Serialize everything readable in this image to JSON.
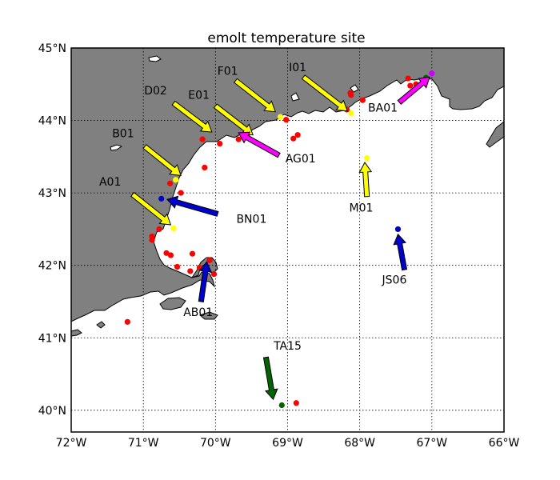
{
  "title": "emolt temperature site",
  "x_ticks": [
    {
      "lon": -72,
      "label": "72°W"
    },
    {
      "lon": -71,
      "label": "71°W"
    },
    {
      "lon": -70,
      "label": "70°W"
    },
    {
      "lon": -69,
      "label": "69°W"
    },
    {
      "lon": -68,
      "label": "68°W"
    },
    {
      "lon": -67,
      "label": "67°W"
    },
    {
      "lon": -66,
      "label": "66°W"
    }
  ],
  "y_ticks": [
    {
      "lat": 45,
      "label": "45°N"
    },
    {
      "lat": 44,
      "label": "44°N"
    },
    {
      "lat": 43,
      "label": "43°N"
    },
    {
      "lat": 42,
      "label": "42°N"
    },
    {
      "lat": 41,
      "label": "41°N"
    },
    {
      "lat": 40,
      "label": "40°N"
    }
  ],
  "map_extent": {
    "lon": [
      -72,
      -66
    ],
    "lat": [
      39.7,
      45
    ]
  },
  "colors": {
    "land": "#808080",
    "water": "#ffffff",
    "yellow": "#ffff00",
    "magenta": "#ff00ff",
    "blue": "#0000cc",
    "green": "#006400",
    "red": "#ff0000",
    "violet": "#cc00ff"
  },
  "sites": [
    {
      "name": "A01",
      "color": "yellow",
      "label": [
        -71.46,
        43.1
      ],
      "tail": [
        -71.15,
        42.98
      ],
      "head": [
        -70.62,
        42.56
      ]
    },
    {
      "name": "B01",
      "color": "yellow",
      "label": [
        -71.28,
        43.77
      ],
      "tail": [
        -70.98,
        43.64
      ],
      "head": [
        -70.48,
        43.24
      ]
    },
    {
      "name": "D02",
      "color": "yellow",
      "label": [
        -70.83,
        44.36
      ],
      "tail": [
        -70.58,
        44.24
      ],
      "head": [
        -70.05,
        43.84
      ]
    },
    {
      "name": "E01",
      "color": "yellow",
      "label": [
        -70.23,
        44.3
      ],
      "tail": [
        -70.0,
        44.2
      ],
      "head": [
        -69.48,
        43.8
      ]
    },
    {
      "name": "F01",
      "color": "yellow",
      "label": [
        -69.83,
        44.63
      ],
      "tail": [
        -69.72,
        44.55
      ],
      "head": [
        -69.17,
        44.12
      ]
    },
    {
      "name": "I01",
      "color": "yellow",
      "label": [
        -68.86,
        44.68
      ],
      "tail": [
        -68.78,
        44.6
      ],
      "head": [
        -68.17,
        44.13
      ]
    },
    {
      "name": "AG01",
      "color": "magenta",
      "label": [
        -68.82,
        43.42
      ],
      "tail": [
        -69.12,
        43.52
      ],
      "head": [
        -69.68,
        43.83
      ]
    },
    {
      "name": "BA01",
      "color": "magenta",
      "label": [
        -67.68,
        44.12
      ],
      "tail": [
        -67.45,
        44.25
      ],
      "head": [
        -67.03,
        44.6
      ]
    },
    {
      "name": "M01",
      "color": "yellow",
      "label": [
        -67.98,
        42.74
      ],
      "tail": [
        -67.9,
        42.95
      ],
      "head": [
        -67.93,
        43.42
      ]
    },
    {
      "name": "BN01",
      "color": "blue",
      "label": [
        -69.5,
        42.59
      ],
      "tail": [
        -69.97,
        42.71
      ],
      "head": [
        -70.67,
        42.91
      ]
    },
    {
      "name": "JS06",
      "color": "blue",
      "label": [
        -67.52,
        41.75
      ],
      "tail": [
        -67.38,
        41.94
      ],
      "head": [
        -67.47,
        42.43
      ]
    },
    {
      "name": "AB01",
      "color": "blue",
      "label": [
        -70.24,
        41.3
      ],
      "tail": [
        -70.2,
        41.5
      ],
      "head": [
        -70.12,
        42.05
      ]
    },
    {
      "name": "TA15",
      "color": "green",
      "label": [
        -69.0,
        40.84
      ],
      "tail": [
        -69.3,
        40.73
      ],
      "head": [
        -69.2,
        40.15
      ]
    }
  ],
  "points": [
    {
      "lon": -70.75,
      "lat": 42.92,
      "color": "blue"
    },
    {
      "lon": -67.47,
      "lat": 42.5,
      "color": "blue"
    },
    {
      "lon": -69.08,
      "lat": 40.07,
      "color": "green"
    },
    {
      "lon": -67.08,
      "lat": 44.59,
      "color": "green"
    },
    {
      "lon": -67.0,
      "lat": 44.65,
      "color": "violet"
    },
    {
      "lon": -70.55,
      "lat": 43.18,
      "color": "yellow"
    },
    {
      "lon": -70.58,
      "lat": 42.51,
      "color": "yellow"
    },
    {
      "lon": -69.1,
      "lat": 44.05,
      "color": "yellow"
    },
    {
      "lon": -68.12,
      "lat": 44.1,
      "color": "yellow"
    },
    {
      "lon": -67.9,
      "lat": 43.48,
      "color": "yellow"
    },
    {
      "lon": -71.22,
      "lat": 41.22,
      "color": "red"
    },
    {
      "lon": -70.88,
      "lat": 42.4,
      "color": "red"
    },
    {
      "lon": -70.88,
      "lat": 42.35,
      "color": "red"
    },
    {
      "lon": -70.78,
      "lat": 42.5,
      "color": "red"
    },
    {
      "lon": -70.68,
      "lat": 42.17,
      "color": "red"
    },
    {
      "lon": -70.62,
      "lat": 42.14,
      "color": "red"
    },
    {
      "lon": -70.53,
      "lat": 41.98,
      "color": "red"
    },
    {
      "lon": -70.48,
      "lat": 43.0,
      "color": "red"
    },
    {
      "lon": -70.63,
      "lat": 43.13,
      "color": "red"
    },
    {
      "lon": -70.32,
      "lat": 42.16,
      "color": "red"
    },
    {
      "lon": -70.35,
      "lat": 41.92,
      "color": "red"
    },
    {
      "lon": -70.22,
      "lat": 41.97,
      "color": "red"
    },
    {
      "lon": -70.08,
      "lat": 42.07,
      "color": "red"
    },
    {
      "lon": -70.02,
      "lat": 41.88,
      "color": "red"
    },
    {
      "lon": -70.15,
      "lat": 43.35,
      "color": "red"
    },
    {
      "lon": -70.18,
      "lat": 43.74,
      "color": "red"
    },
    {
      "lon": -69.94,
      "lat": 43.68,
      "color": "red"
    },
    {
      "lon": -69.68,
      "lat": 43.74,
      "color": "red"
    },
    {
      "lon": -69.56,
      "lat": 43.79,
      "color": "red"
    },
    {
      "lon": -68.92,
      "lat": 43.75,
      "color": "red"
    },
    {
      "lon": -68.86,
      "lat": 43.8,
      "color": "red"
    },
    {
      "lon": -69.02,
      "lat": 44.01,
      "color": "red"
    },
    {
      "lon": -68.18,
      "lat": 44.15,
      "color": "red"
    },
    {
      "lon": -68.12,
      "lat": 44.35,
      "color": "red"
    },
    {
      "lon": -68.13,
      "lat": 44.38,
      "color": "red"
    },
    {
      "lon": -67.96,
      "lat": 44.28,
      "color": "red"
    },
    {
      "lon": -67.3,
      "lat": 44.48,
      "color": "red"
    },
    {
      "lon": -67.33,
      "lat": 44.58,
      "color": "red"
    },
    {
      "lon": -67.22,
      "lat": 44.5,
      "color": "red"
    },
    {
      "lon": -68.88,
      "lat": 40.1,
      "color": "red"
    }
  ]
}
